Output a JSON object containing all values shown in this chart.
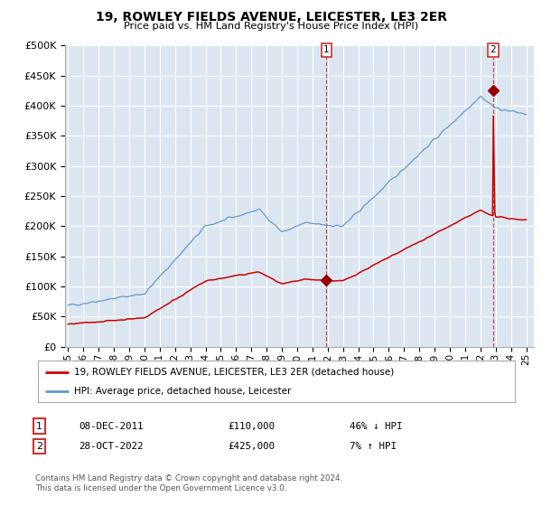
{
  "title": "19, ROWLEY FIELDS AVENUE, LEICESTER, LE3 2ER",
  "subtitle": "Price paid vs. HM Land Registry's House Price Index (HPI)",
  "legend_line1": "19, ROWLEY FIELDS AVENUE, LEICESTER, LE3 2ER (detached house)",
  "legend_line2": "HPI: Average price, detached house, Leicester",
  "sale1_date": 2011.92,
  "sale1_price": 110000,
  "sale1_label": "08-DEC-2011",
  "sale1_pct": "46% ↓ HPI",
  "sale2_date": 2022.82,
  "sale2_price": 425000,
  "sale2_label": "28-OCT-2022",
  "sale2_pct": "7% ↑ HPI",
  "footer": "Contains HM Land Registry data © Crown copyright and database right 2024.\nThis data is licensed under the Open Government Licence v3.0.",
  "ylim": [
    0,
    500000
  ],
  "xlim_start": 1994.8,
  "xlim_end": 2025.5,
  "plot_bg_color": "#dce6f1",
  "red_line_color": "#cc0000",
  "blue_line_color": "#6699cc",
  "vline_color": "#cc0000",
  "grid_color": "#ffffff",
  "marker_color": "#990000"
}
